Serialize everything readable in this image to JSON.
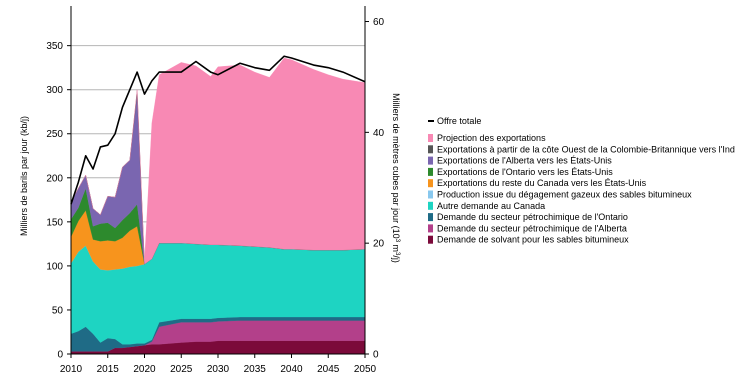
{
  "chart_data": {
    "type": "area",
    "title": "",
    "xlabel": "",
    "ylabel_left": "Milliers de barils par jour (kb/j)",
    "ylabel_right_prefix": "Milliers de mètres cubes par jour (10",
    "ylabel_right_sup1": "3",
    "ylabel_right_mid": " m",
    "ylabel_right_sup2": "3",
    "ylabel_right_suffix": "/j)",
    "x": [
      2010,
      2011,
      2012,
      2013,
      2014,
      2015,
      2016,
      2017,
      2018,
      2019,
      2020,
      2021,
      2022,
      2025,
      2027,
      2029,
      2030,
      2033,
      2035,
      2037,
      2039,
      2040,
      2043,
      2045,
      2047,
      2050
    ],
    "x_ticks": [
      2010,
      2015,
      2020,
      2025,
      2030,
      2035,
      2040,
      2045,
      2050
    ],
    "y_left_ticks": [
      0,
      50,
      100,
      150,
      200,
      250,
      300,
      350
    ],
    "y_right_ticks": [
      0,
      20,
      40,
      60
    ],
    "ylim_left": [
      0,
      395
    ],
    "ylim_right": [
      0,
      62.8
    ],
    "grid": "horizontal",
    "legend_position": "right",
    "series": [
      {
        "name": "Demande de solvant pour les sables bitumineux",
        "color": "#7b0a3a",
        "values": [
          3,
          3,
          3,
          3,
          3,
          3,
          7,
          7,
          8,
          9,
          10,
          11,
          11,
          13,
          14,
          14,
          15,
          15,
          15,
          15,
          15,
          15,
          15,
          15,
          15,
          15
        ]
      },
      {
        "name": "Demande du secteur pétrochimique de l'Alberta",
        "color": "#b3408a",
        "values": [
          0,
          0,
          0,
          0,
          0,
          0,
          0,
          0,
          0,
          0,
          0,
          3,
          20,
          23,
          22,
          22,
          22,
          23,
          23,
          23,
          23,
          23,
          23,
          23,
          23,
          23
        ]
      },
      {
        "name": "Demande du secteur pétrochimique de l'Ontario",
        "color": "#1f6b86",
        "values": [
          20,
          23,
          28,
          20,
          10,
          15,
          10,
          4,
          3,
          3,
          2,
          2,
          5,
          4,
          4,
          4,
          4,
          4,
          4,
          4,
          4,
          4,
          4,
          4,
          4,
          4
        ]
      },
      {
        "name": "Autre demande au Canada",
        "color": "#1ed4c2",
        "values": [
          80,
          90,
          92,
          82,
          83,
          77,
          79,
          86,
          88,
          88,
          90,
          92,
          90,
          86,
          85,
          84,
          83,
          81,
          80,
          79,
          77,
          77,
          76,
          76,
          76,
          77
        ]
      },
      {
        "name": "Production issue du dégagement gazeux des sables bitumineux",
        "color": "#88c8ee",
        "values": [
          0,
          0,
          0,
          0,
          0,
          0,
          0,
          0,
          0,
          0,
          0,
          0,
          0,
          0,
          0,
          0,
          0,
          0,
          0,
          0,
          0,
          0,
          0,
          0,
          0,
          0
        ]
      },
      {
        "name": "Exportations du reste du Canada vers les États-Unis",
        "color": "#f7941d",
        "values": [
          30,
          35,
          40,
          25,
          32,
          34,
          32,
          35,
          41,
          45,
          0,
          0,
          0,
          0,
          0,
          0,
          0,
          0,
          0,
          0,
          0,
          0,
          0,
          0,
          0,
          0
        ]
      },
      {
        "name": "Exportations de l'Ontario vers les États-Unis",
        "color": "#2d8a2d",
        "values": [
          20,
          15,
          25,
          15,
          20,
          20,
          15,
          20,
          20,
          25,
          0,
          0,
          0,
          0,
          0,
          0,
          0,
          0,
          0,
          0,
          0,
          0,
          0,
          0,
          0,
          0
        ]
      },
      {
        "name": "Exportations de l'Alberta vers les États-Unis",
        "color": "#7a66b0",
        "values": [
          20,
          22,
          15,
          20,
          10,
          30,
          35,
          60,
          60,
          125,
          0,
          0,
          0,
          0,
          0,
          0,
          0,
          0,
          0,
          0,
          0,
          0,
          0,
          0,
          0,
          0
        ]
      },
      {
        "name": "Exportations à partir de la côte Ouest de la Colombie-Britannique vers l'Inde",
        "color": "#555555",
        "values": [
          0,
          0,
          0,
          0,
          0,
          0,
          0,
          0,
          0,
          5,
          0,
          0,
          0,
          0,
          0,
          0,
          0,
          0,
          0,
          0,
          0,
          0,
          0,
          0,
          0,
          0
        ]
      },
      {
        "name": "Projection des exportations",
        "color": "#f889b4",
        "values": [
          0,
          0,
          0,
          0,
          0,
          0,
          0,
          0,
          0,
          0,
          3,
          154,
          191,
          205,
          202,
          191,
          202,
          205,
          198,
          193,
          217,
          215,
          205,
          199,
          194,
          189
        ]
      }
    ],
    "total": {
      "name": "Offre totale",
      "color": "#000000",
      "values": [
        170,
        195,
        225,
        210,
        235,
        237,
        250,
        280,
        300,
        320,
        295,
        310,
        320,
        320,
        332,
        320,
        317,
        330,
        325,
        322,
        338,
        336,
        328,
        325,
        320,
        309
      ]
    }
  }
}
